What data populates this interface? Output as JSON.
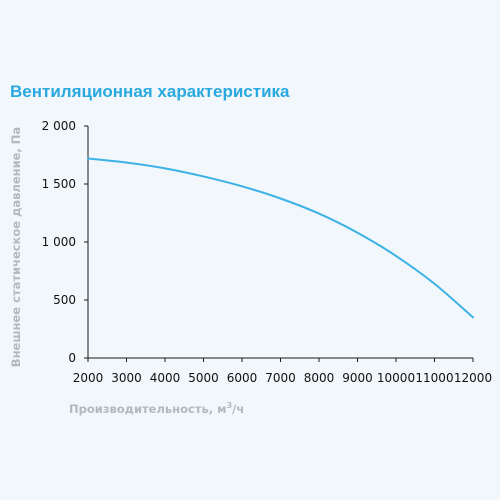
{
  "colors": {
    "background": "#f2f7fb",
    "title": "#29a9e0",
    "series": "#3cb2e6",
    "axis": "#1a1a1a",
    "axis_label": "#b3b8bd"
  },
  "chart_data": {
    "type": "line",
    "title": "Вентиляционная характеристика",
    "xlabel_main": "Производительность, м",
    "xlabel_sup": "3",
    "xlabel_tail": "/ч",
    "ylabel": "Внешнее статическое давление, Па",
    "xlim": [
      2000,
      12000
    ],
    "ylim": [
      0,
      2000
    ],
    "x_ticks": [
      2000,
      3000,
      4000,
      5000,
      6000,
      7000,
      8000,
      9000,
      10000,
      11000,
      12000
    ],
    "x_tick_labels": [
      "2000",
      "3000",
      "4000",
      "5000",
      "6000",
      "7000",
      "8000",
      "9000",
      "10000",
      "11000",
      "12000"
    ],
    "y_ticks": [
      0,
      500,
      1000,
      1500,
      2000
    ],
    "y_tick_labels": [
      "0",
      "500",
      "1 000",
      "1 500",
      "2 000"
    ],
    "grid": false,
    "legend": "none",
    "series": [
      {
        "x": [
          2000,
          3000,
          4000,
          5000,
          6000,
          7000,
          8000,
          9000,
          10000,
          11000,
          12000
        ],
        "y": [
          1720,
          1685,
          1635,
          1565,
          1480,
          1375,
          1245,
          1080,
          880,
          640,
          350
        ]
      }
    ]
  }
}
